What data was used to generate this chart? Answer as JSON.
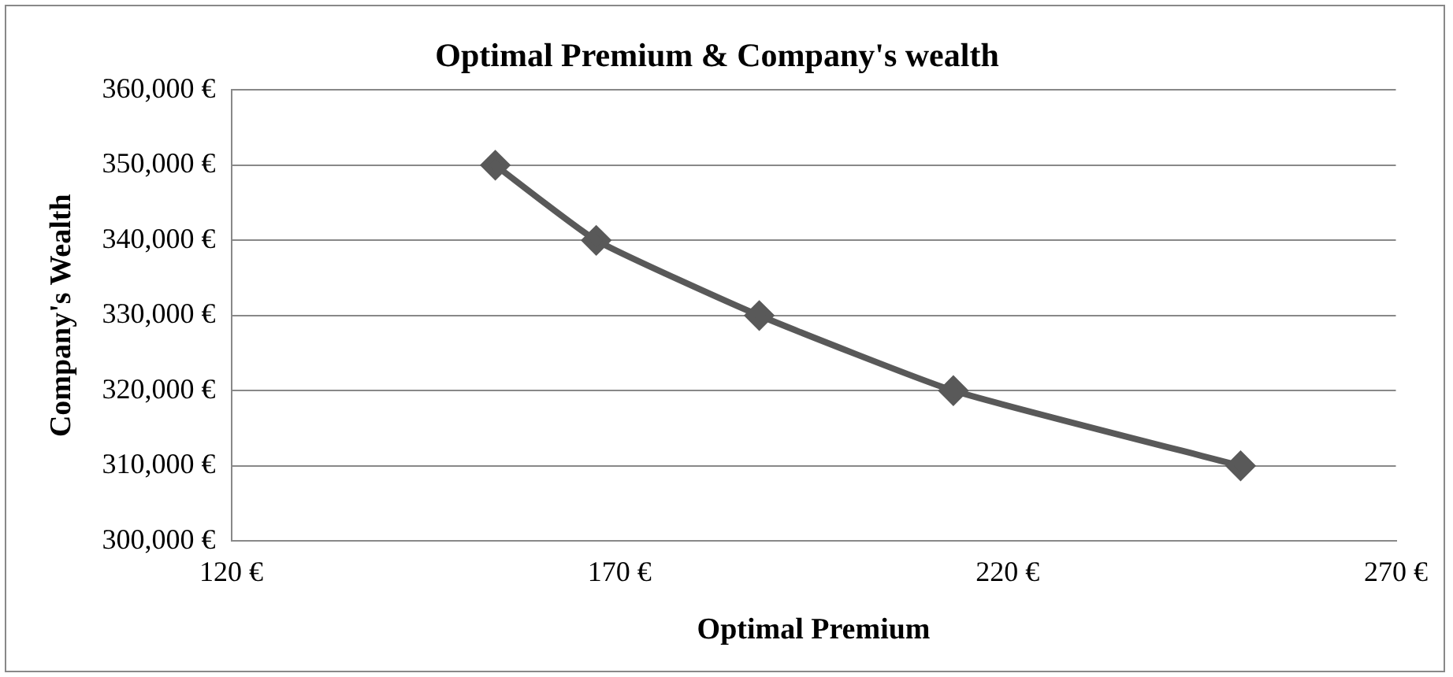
{
  "chart_data": {
    "type": "line",
    "title": "Optimal Premium & Company's wealth",
    "xlabel": "Optimal Premium",
    "ylabel": "Company's Wealth",
    "x": [
      154,
      167,
      188,
      213,
      250
    ],
    "series": [
      {
        "color": "#595959",
        "values": [
          350000,
          340000,
          330000,
          320000,
          310000
        ]
      }
    ],
    "xlim": [
      120,
      270
    ],
    "xticks": [
      {
        "value": 120,
        "label": "120 €"
      },
      {
        "value": 170,
        "label": "170 €"
      },
      {
        "value": 220,
        "label": "220 €"
      },
      {
        "value": 270,
        "label": "270 €"
      }
    ],
    "ylim": [
      300000,
      360000
    ],
    "yticks": [
      {
        "value": 300000,
        "label": "300,000 €"
      },
      {
        "value": 310000,
        "label": "310,000 €"
      },
      {
        "value": 320000,
        "label": "320,000 €"
      },
      {
        "value": 330000,
        "label": "330,000 €"
      },
      {
        "value": 340000,
        "label": "340,000 €"
      },
      {
        "value": 350000,
        "label": "350,000 €"
      },
      {
        "value": 360000,
        "label": "360,000 €"
      }
    ],
    "grid": "y",
    "legend": false,
    "marker": "diamond",
    "line_style": "solid"
  }
}
